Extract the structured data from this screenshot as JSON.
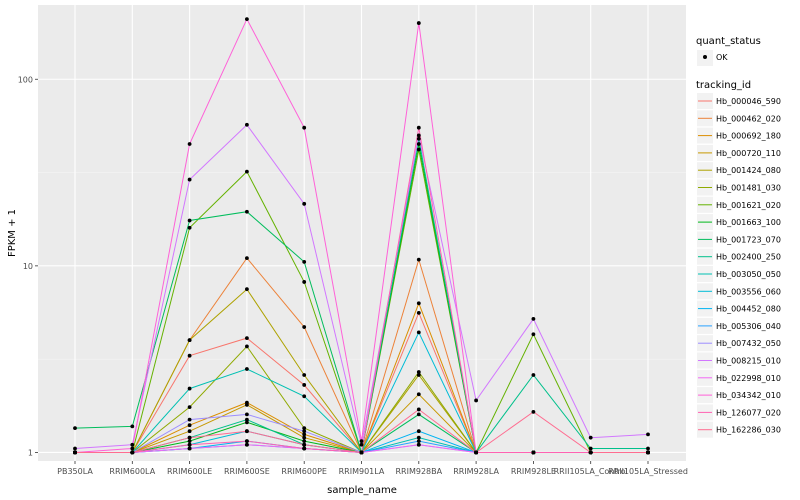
{
  "chart_data": {
    "type": "line",
    "xlabel": "sample_name",
    "ylabel": "FPKM + 1",
    "yscale": "log10",
    "ylim": [
      0.9,
      250
    ],
    "yticks": [
      1,
      10,
      100
    ],
    "ytick_labels": [
      "1",
      "10",
      "100"
    ],
    "categories": [
      "PB350LA",
      "RRIM600LA",
      "RRIM600LE",
      "RRIM600SE",
      "RRIM600PE",
      "RRIM901LA",
      "RRIM928BA",
      "RRIM928LA",
      "RRIM928LE",
      "RRII105LA_Control",
      "RRII105LA_Stressed"
    ],
    "legend_shape": {
      "title": "quant_status",
      "items": [
        {
          "label": "OK",
          "marker": "point"
        }
      ]
    },
    "legend_title": "tracking_id",
    "series": [
      {
        "name": "Hb_000046_590",
        "color": "#F8766D",
        "values": [
          1.0,
          1.0,
          3.3,
          4.1,
          2.3,
          1.0,
          5.6,
          1.0,
          1.0,
          1.0,
          1.0
        ]
      },
      {
        "name": "Hb_000462_020",
        "color": "#EC8239",
        "values": [
          1.0,
          1.0,
          4.0,
          11.0,
          4.7,
          1.0,
          10.8,
          1.0,
          1.0,
          1.0,
          1.0
        ]
      },
      {
        "name": "Hb_000692_180",
        "color": "#DB8E00",
        "values": [
          1.0,
          1.0,
          1.4,
          1.85,
          1.25,
          1.0,
          6.3,
          1.0,
          1.0,
          1.0,
          1.0
        ]
      },
      {
        "name": "Hb_000720_110",
        "color": "#C79800",
        "values": [
          1.0,
          1.0,
          1.3,
          1.8,
          1.2,
          1.0,
          2.05,
          1.0,
          1.0,
          1.0,
          1.0
        ]
      },
      {
        "name": "Hb_001424_080",
        "color": "#AEA200",
        "values": [
          1.0,
          1.0,
          4.0,
          7.5,
          2.6,
          1.0,
          2.6,
          1.0,
          1.0,
          1.0,
          1.0
        ]
      },
      {
        "name": "Hb_001481_030",
        "color": "#8FAA00",
        "values": [
          1.0,
          1.0,
          1.75,
          3.7,
          1.35,
          1.0,
          2.7,
          1.0,
          1.0,
          1.0,
          1.0
        ]
      },
      {
        "name": "Hb_001621_020",
        "color": "#64B200",
        "values": [
          1.0,
          1.0,
          16.0,
          32.0,
          8.2,
          1.0,
          42.0,
          1.0,
          4.3,
          1.0,
          1.0
        ]
      },
      {
        "name": "Hb_001663_100",
        "color": "#00B81B",
        "values": [
          1.0,
          1.0,
          1.15,
          1.45,
          1.15,
          1.0,
          45.0,
          1.0,
          1.0,
          1.0,
          1.0
        ]
      },
      {
        "name": "Hb_001723_070",
        "color": "#00BD5C",
        "values": [
          1.35,
          1.38,
          17.5,
          19.5,
          10.5,
          1.0,
          1.6,
          1.0,
          1.0,
          1.0,
          1.0
        ]
      },
      {
        "name": "Hb_002400_250",
        "color": "#00C08B",
        "values": [
          1.0,
          1.0,
          1.2,
          1.5,
          1.1,
          1.0,
          48.0,
          1.0,
          2.6,
          1.05,
          1.05
        ]
      },
      {
        "name": "Hb_003050_050",
        "color": "#00C0B2",
        "values": [
          1.0,
          1.0,
          2.2,
          2.8,
          2.0,
          1.0,
          1.2,
          1.0,
          1.0,
          1.0,
          1.0
        ]
      },
      {
        "name": "Hb_003556_060",
        "color": "#00BCD6",
        "values": [
          1.0,
          1.0,
          1.1,
          1.3,
          1.1,
          1.0,
          4.4,
          1.0,
          1.0,
          1.0,
          1.0
        ]
      },
      {
        "name": "Hb_004452_080",
        "color": "#00B3F2",
        "values": [
          1.0,
          1.0,
          1.05,
          1.15,
          1.05,
          1.0,
          1.3,
          1.0,
          1.0,
          1.0,
          1.0
        ]
      },
      {
        "name": "Hb_005306_040",
        "color": "#29A3FF",
        "values": [
          1.0,
          1.0,
          1.05,
          1.1,
          1.05,
          1.0,
          1.15,
          1.0,
          1.0,
          1.0,
          1.0
        ]
      },
      {
        "name": "Hb_007432_050",
        "color": "#9C8DFF",
        "values": [
          1.0,
          1.0,
          1.5,
          1.6,
          1.3,
          1.0,
          1.1,
          1.0,
          1.0,
          1.0,
          1.0
        ]
      },
      {
        "name": "Hb_008215_010",
        "color": "#D277FF",
        "values": [
          1.05,
          1.1,
          29.0,
          57.0,
          21.5,
          1.1,
          50.0,
          1.9,
          5.2,
          1.2,
          1.25
        ]
      },
      {
        "name": "Hb_022998_010",
        "color": "#F269F4",
        "values": [
          1.0,
          1.0,
          1.05,
          1.1,
          1.05,
          1.0,
          1.1,
          1.0,
          1.0,
          1.0,
          1.0
        ]
      },
      {
        "name": "Hb_034342_010",
        "color": "#FF61D8",
        "values": [
          1.0,
          1.05,
          45.0,
          210.0,
          55.0,
          1.15,
          200.0,
          1.0,
          1.0,
          1.0,
          1.0
        ]
      },
      {
        "name": "Hb_126077_020",
        "color": "#FF62B2",
        "values": [
          1.0,
          1.0,
          1.1,
          1.15,
          1.05,
          1.0,
          55.0,
          1.0,
          1.0,
          1.0,
          1.0
        ]
      },
      {
        "name": "Hb_162286_030",
        "color": "#FF6C90",
        "values": [
          1.0,
          1.0,
          1.2,
          1.3,
          1.1,
          1.0,
          1.7,
          1.0,
          1.65,
          1.0,
          1.0
        ]
      }
    ]
  }
}
